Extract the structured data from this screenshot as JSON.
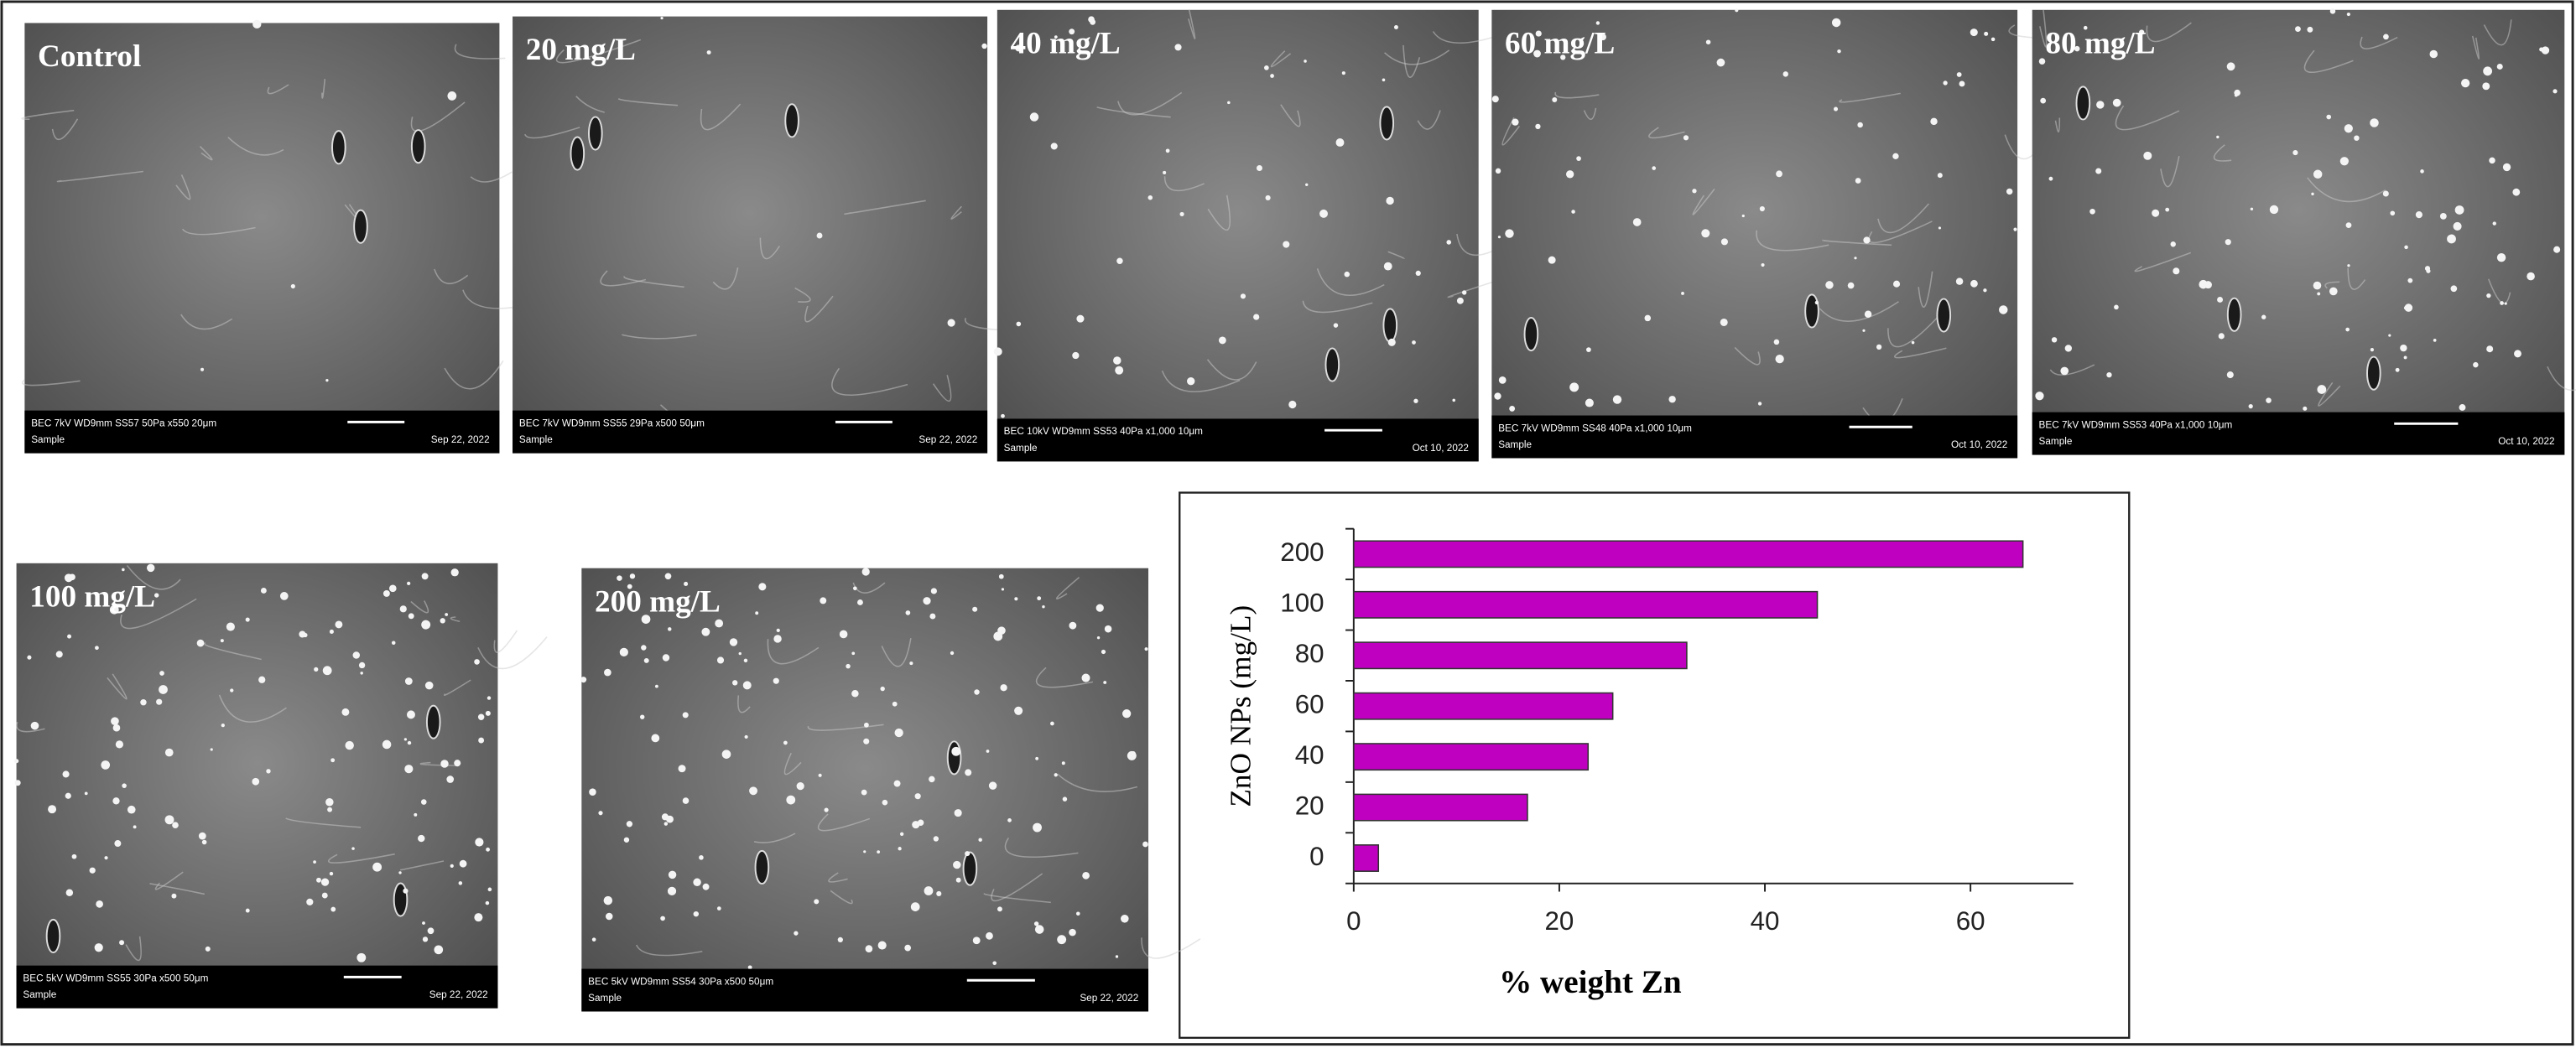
{
  "panels": [
    {
      "label": "Control",
      "info": "BEC 7kV   WD9mm  SS57   50Pa  x550     20μm",
      "sample": "Sample",
      "date": "Sep 22, 2022"
    },
    {
      "label": "20 mg/L",
      "info": "BEC 7kV   WD9mm  SS55   29Pa  x500        50μm",
      "sample": "Sample",
      "date": "Sep 22, 2022"
    },
    {
      "label": "40 mg/L",
      "info": "BEC 10kV  WD9mm  SS53   40Pa  x1,000     10μm",
      "sample": "Sample",
      "date": "Oct 10, 2022"
    },
    {
      "label": "60 mg/L",
      "info": "BEC 7kV   WD9mm  SS48   40Pa  x1,000     10μm",
      "sample": "Sample",
      "date": "Oct 10, 2022"
    },
    {
      "label": "80 mg/L",
      "info": "BEC 7kV   WD9mm  SS53   40Pa  x1,000     10μm",
      "sample": "Sample",
      "date": "Oct 10, 2022"
    },
    {
      "label": "100 mg/L",
      "info": "BEC 5kV   WD9mm  SS55   30Pa  x500       50μm",
      "sample": "Sample",
      "date": "Sep 22, 2022"
    },
    {
      "label": "200 mg/L",
      "info": "BEC 5kV   WD9mm  SS54   30Pa  x500       50μm",
      "sample": "Sample",
      "date": "Sep 22, 2022"
    }
  ],
  "chart_data": {
    "type": "barh",
    "x_label": "% weight Zn",
    "y_label": "ZnO NPs (mg/L)",
    "categories": [
      "0",
      "20",
      "40",
      "60",
      "80",
      "100",
      "200"
    ],
    "values": [
      2.4,
      16.9,
      22.8,
      25.2,
      32.4,
      45.1,
      65.1
    ],
    "color": "#c000c0",
    "xlim": [
      0,
      70
    ],
    "xticks": [
      0,
      20,
      40,
      60
    ],
    "grid": false
  }
}
